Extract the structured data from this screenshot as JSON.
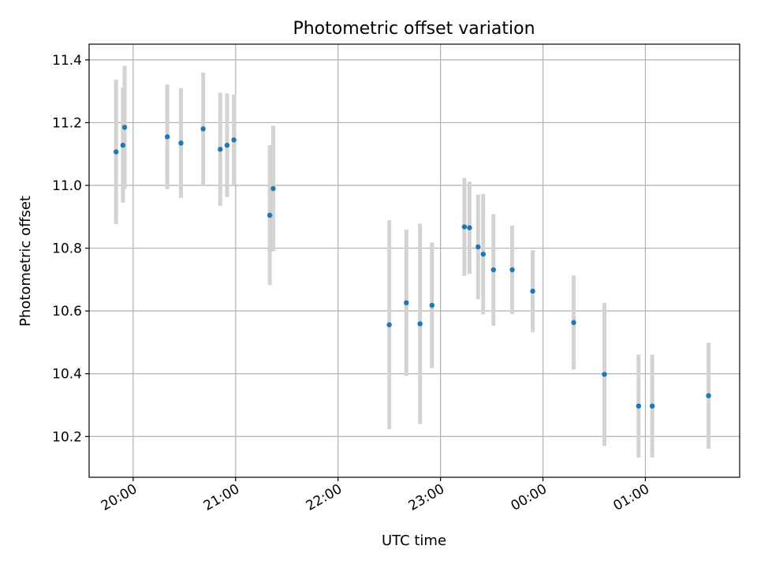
{
  "chart_data": {
    "type": "scatter",
    "title": "Photometric offset variation",
    "xlabel": "UTC time",
    "ylabel": "Photometric offset",
    "x_ticks": [
      "20:00",
      "21:00",
      "22:00",
      "23:00",
      "00:00",
      "01:00"
    ],
    "x_tick_hours": [
      20,
      21,
      22,
      23,
      24,
      25
    ],
    "xlim_hours": [
      19.57,
      25.92
    ],
    "y_ticks": [
      "10.2",
      "10.4",
      "10.6",
      "10.8",
      "11.0",
      "11.2",
      "11.4"
    ],
    "y_tick_values": [
      10.2,
      10.4,
      10.6,
      10.8,
      11.0,
      11.2,
      11.4
    ],
    "ylim": [
      10.07,
      11.45
    ],
    "grid": true,
    "legend": "none",
    "colors": {
      "point": "#1f77b4",
      "errorbar": "#d3d3d3",
      "grid": "#b0b0b0"
    },
    "points": [
      {
        "t": "19:50",
        "y": 11.107,
        "ylo": 10.877,
        "yhi": 11.337
      },
      {
        "t": "19:54",
        "y": 11.128,
        "ylo": 10.945,
        "yhi": 11.311
      },
      {
        "t": "19:55",
        "y": 11.185,
        "ylo": 10.989,
        "yhi": 11.381
      },
      {
        "t": "20:20",
        "y": 11.155,
        "ylo": 10.988,
        "yhi": 11.322
      },
      {
        "t": "20:28",
        "y": 11.135,
        "ylo": 10.96,
        "yhi": 11.31
      },
      {
        "t": "20:41",
        "y": 11.18,
        "ylo": 11.0,
        "yhi": 11.36
      },
      {
        "t": "20:51",
        "y": 11.115,
        "ylo": 10.935,
        "yhi": 11.295
      },
      {
        "t": "20:55",
        "y": 11.128,
        "ylo": 10.963,
        "yhi": 11.293
      },
      {
        "t": "20:59",
        "y": 11.145,
        "ylo": 11.0,
        "yhi": 11.29
      },
      {
        "t": "21:20",
        "y": 10.905,
        "ylo": 10.682,
        "yhi": 11.128
      },
      {
        "t": "21:22",
        "y": 10.99,
        "ylo": 10.79,
        "yhi": 11.19
      },
      {
        "t": "22:30",
        "y": 10.556,
        "ylo": 10.223,
        "yhi": 10.889
      },
      {
        "t": "22:40",
        "y": 10.626,
        "ylo": 10.393,
        "yhi": 10.859
      },
      {
        "t": "22:48",
        "y": 10.559,
        "ylo": 10.24,
        "yhi": 10.878
      },
      {
        "t": "22:55",
        "y": 10.618,
        "ylo": 10.418,
        "yhi": 10.818
      },
      {
        "t": "23:14",
        "y": 10.868,
        "ylo": 10.712,
        "yhi": 11.024
      },
      {
        "t": "23:17",
        "y": 10.865,
        "ylo": 10.718,
        "yhi": 11.012
      },
      {
        "t": "23:22",
        "y": 10.804,
        "ylo": 10.637,
        "yhi": 10.971
      },
      {
        "t": "23:25",
        "y": 10.781,
        "ylo": 10.589,
        "yhi": 10.973
      },
      {
        "t": "23:31",
        "y": 10.731,
        "ylo": 10.553,
        "yhi": 10.909
      },
      {
        "t": "23:42",
        "y": 10.731,
        "ylo": 10.59,
        "yhi": 10.872
      },
      {
        "t": "23:54",
        "y": 10.663,
        "ylo": 10.532,
        "yhi": 10.794
      },
      {
        "t": "00:18",
        "y": 10.563,
        "ylo": 10.413,
        "yhi": 10.713
      },
      {
        "t": "00:36",
        "y": 10.398,
        "ylo": 10.17,
        "yhi": 10.626
      },
      {
        "t": "00:56",
        "y": 10.297,
        "ylo": 10.133,
        "yhi": 10.461
      },
      {
        "t": "01:04",
        "y": 10.297,
        "ylo": 10.133,
        "yhi": 10.461
      },
      {
        "t": "01:37",
        "y": 10.33,
        "ylo": 10.161,
        "yhi": 10.499
      }
    ]
  }
}
